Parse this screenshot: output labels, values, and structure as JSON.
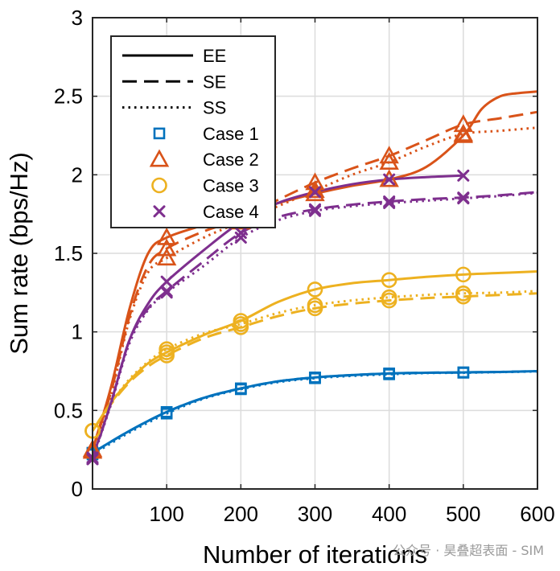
{
  "chart_data": {
    "type": "line",
    "title": "",
    "xlabel": "Number of iterations",
    "ylabel": "Sum rate (bps/Hz)",
    "xlim": [
      0,
      600
    ],
    "ylim": [
      0,
      3
    ],
    "xticks": [
      100,
      200,
      300,
      400,
      500,
      600
    ],
    "yticks": [
      0,
      0.5,
      1,
      1.5,
      2,
      2.5,
      3
    ],
    "xtick_labels": [
      "100",
      "200",
      "300",
      "400",
      "500",
      "600"
    ],
    "ytick_labels": [
      "0",
      "0.5",
      "1",
      "1.5",
      "2",
      "2.5",
      "3"
    ],
    "grid": true,
    "legend_position": "top-left",
    "legend_styles": [
      {
        "label": "EE",
        "dash": "solid"
      },
      {
        "label": "SE",
        "dash": "dashed"
      },
      {
        "label": "SS",
        "dash": "dotted"
      }
    ],
    "legend_cases": [
      {
        "label": "Case 1",
        "color": "#0072BD",
        "marker": "square"
      },
      {
        "label": "Case 2",
        "color": "#D95319",
        "marker": "triangle"
      },
      {
        "label": "Case 3",
        "color": "#EDB120",
        "marker": "circle"
      },
      {
        "label": "Case 4",
        "color": "#7E2F8E",
        "marker": "x"
      }
    ],
    "series": [
      {
        "case": "Case 1",
        "style": "EE",
        "color": "#0072BD",
        "marker": "square",
        "x": [
          0,
          50,
          100,
          150,
          200,
          250,
          300,
          350,
          400,
          450,
          500,
          550,
          600
        ],
        "y": [
          0.23,
          0.37,
          0.49,
          0.58,
          0.64,
          0.685,
          0.71,
          0.725,
          0.735,
          0.74,
          0.742,
          0.745,
          0.75
        ],
        "markers_x": [
          0,
          100,
          200,
          300,
          400,
          500
        ]
      },
      {
        "case": "Case 1",
        "style": "SE",
        "color": "#0072BD",
        "marker": "square",
        "x": [
          0,
          50,
          100,
          150,
          200,
          250,
          300,
          350,
          400,
          450,
          500,
          550,
          600
        ],
        "y": [
          0.23,
          0.37,
          0.49,
          0.58,
          0.64,
          0.685,
          0.71,
          0.725,
          0.735,
          0.74,
          0.742,
          0.745,
          0.75
        ],
        "markers_x": [
          0,
          100,
          200,
          300,
          400,
          500
        ]
      },
      {
        "case": "Case 1",
        "style": "SS",
        "color": "#0072BD",
        "marker": "square",
        "x": [
          0,
          50,
          100,
          150,
          200,
          250,
          300,
          350,
          400,
          450,
          500,
          550,
          600
        ],
        "y": [
          0.22,
          0.36,
          0.48,
          0.575,
          0.635,
          0.68,
          0.705,
          0.72,
          0.73,
          0.738,
          0.74,
          0.744,
          0.748
        ],
        "markers_x": [
          0,
          100,
          200,
          300,
          400,
          500
        ]
      },
      {
        "case": "Case 2",
        "style": "EE",
        "color": "#D95319",
        "marker": "triangle",
        "x": [
          0,
          25,
          50,
          75,
          100,
          150,
          200,
          250,
          300,
          350,
          400,
          450,
          500,
          525,
          550,
          575,
          600
        ],
        "y": [
          0.25,
          0.65,
          1.15,
          1.5,
          1.6,
          1.68,
          1.75,
          1.82,
          1.88,
          1.93,
          1.97,
          2.05,
          2.25,
          2.42,
          2.5,
          2.52,
          2.53
        ],
        "markers_x": [
          0,
          100,
          200,
          300,
          400,
          500
        ]
      },
      {
        "case": "Case 2",
        "style": "SE",
        "color": "#D95319",
        "marker": "triangle",
        "x": [
          0,
          25,
          50,
          75,
          100,
          150,
          200,
          250,
          300,
          350,
          400,
          450,
          500,
          550,
          600
        ],
        "y": [
          0.25,
          0.62,
          1.1,
          1.42,
          1.53,
          1.64,
          1.72,
          1.84,
          1.95,
          2.04,
          2.12,
          2.22,
          2.32,
          2.36,
          2.4
        ],
        "markers_x": [
          0,
          100,
          200,
          300,
          400,
          500
        ]
      },
      {
        "case": "Case 2",
        "style": "SS",
        "color": "#D95319",
        "marker": "triangle",
        "x": [
          0,
          25,
          50,
          75,
          100,
          150,
          200,
          250,
          300,
          350,
          400,
          450,
          500,
          550,
          600
        ],
        "y": [
          0.24,
          0.6,
          1.08,
          1.38,
          1.47,
          1.6,
          1.7,
          1.8,
          1.9,
          2.0,
          2.08,
          2.18,
          2.26,
          2.28,
          2.3
        ],
        "markers_x": [
          0,
          100,
          200,
          300,
          400,
          500
        ]
      },
      {
        "case": "Case 3",
        "style": "EE",
        "color": "#EDB120",
        "marker": "circle",
        "x": [
          0,
          25,
          50,
          75,
          100,
          150,
          200,
          250,
          300,
          350,
          400,
          450,
          500,
          550,
          600
        ],
        "y": [
          0.37,
          0.55,
          0.69,
          0.8,
          0.87,
          0.98,
          1.07,
          1.19,
          1.27,
          1.31,
          1.33,
          1.35,
          1.365,
          1.375,
          1.385
        ],
        "markers_x": [
          0,
          100,
          200,
          300,
          400,
          500
        ]
      },
      {
        "case": "Case 3",
        "style": "SE",
        "color": "#EDB120",
        "marker": "circle",
        "x": [
          0,
          25,
          50,
          75,
          100,
          150,
          200,
          250,
          300,
          350,
          400,
          450,
          500,
          550,
          600
        ],
        "y": [
          0.37,
          0.54,
          0.68,
          0.78,
          0.85,
          0.96,
          1.03,
          1.1,
          1.15,
          1.18,
          1.2,
          1.215,
          1.225,
          1.235,
          1.245
        ],
        "markers_x": [
          0,
          100,
          200,
          300,
          400,
          500
        ]
      },
      {
        "case": "Case 3",
        "style": "SS",
        "color": "#EDB120",
        "marker": "circle",
        "x": [
          0,
          25,
          50,
          75,
          100,
          150,
          200,
          250,
          300,
          350,
          400,
          450,
          500,
          550,
          600
        ],
        "y": [
          0.37,
          0.55,
          0.7,
          0.81,
          0.89,
          0.99,
          1.05,
          1.12,
          1.17,
          1.2,
          1.22,
          1.235,
          1.245,
          1.25,
          1.26
        ],
        "markers_x": [
          0,
          100,
          200,
          300,
          400,
          500
        ]
      },
      {
        "case": "Case 4",
        "style": "EE",
        "color": "#7E2F8E",
        "marker": "x",
        "x": [
          0,
          25,
          50,
          75,
          100,
          150,
          200,
          250,
          300,
          350,
          400,
          450,
          500
        ],
        "y": [
          0.2,
          0.55,
          0.95,
          1.18,
          1.32,
          1.52,
          1.7,
          1.82,
          1.89,
          1.94,
          1.97,
          1.985,
          1.995
        ],
        "markers_x": [
          0,
          100,
          200,
          300,
          400,
          500
        ]
      },
      {
        "case": "Case 4",
        "style": "SE",
        "color": "#7E2F8E",
        "marker": "x",
        "x": [
          0,
          25,
          50,
          75,
          100,
          150,
          200,
          250,
          300,
          350,
          400,
          450,
          500,
          550,
          600
        ],
        "y": [
          0.19,
          0.55,
          0.95,
          1.15,
          1.26,
          1.45,
          1.63,
          1.73,
          1.78,
          1.81,
          1.83,
          1.845,
          1.855,
          1.87,
          1.89
        ],
        "markers_x": [
          0,
          100,
          200,
          300,
          400,
          500
        ]
      },
      {
        "case": "Case 4",
        "style": "SS",
        "color": "#7E2F8E",
        "marker": "x",
        "x": [
          0,
          25,
          50,
          75,
          100,
          150,
          200,
          250,
          300,
          350,
          400,
          450,
          500,
          550,
          600
        ],
        "y": [
          0.19,
          0.54,
          0.93,
          1.14,
          1.25,
          1.42,
          1.6,
          1.71,
          1.77,
          1.8,
          1.82,
          1.835,
          1.85,
          1.865,
          1.885
        ],
        "markers_x": [
          0,
          100,
          200,
          300,
          400,
          500
        ]
      }
    ]
  },
  "watermark": "公众号 · 昊叠超表面 - SIM"
}
